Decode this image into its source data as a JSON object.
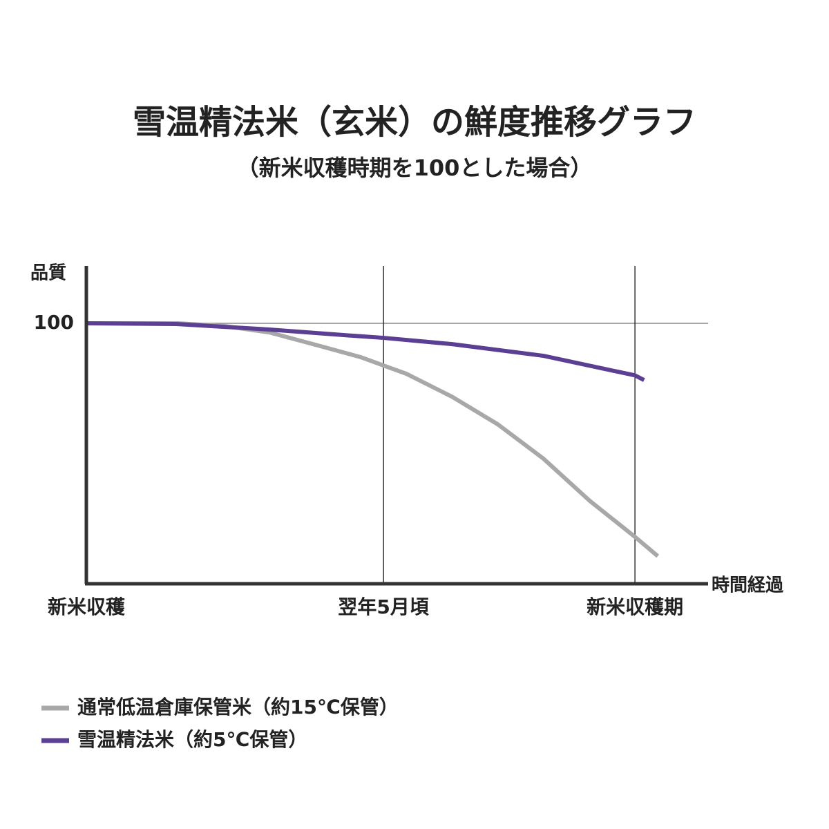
{
  "chart_data": {
    "type": "line",
    "title": "雪温精法米（玄米）の鮮度推移グラフ",
    "subtitle": "（新米収穫時期を100とした場合）",
    "y_label": "品質",
    "x_label": "時間経過",
    "xlim": [
      0,
      13.6
    ],
    "xticks": [
      {
        "value": 0,
        "label": "新米収穫"
      },
      {
        "value": 6.5,
        "label": "翌年5月頃"
      },
      {
        "value": 12,
        "label": "新米収穫期"
      }
    ],
    "ylim": [
      0,
      122
    ],
    "yticks": [
      100
    ],
    "grid": true,
    "legend": "bottom-left",
    "series": [
      {
        "name": "通常低温倉庫保管米（約15℃保管）",
        "color": "#a8a8a8",
        "x": [
          0,
          1,
          2,
          3,
          4,
          5,
          6,
          6.5,
          7,
          8,
          9,
          10,
          11,
          12,
          12.5
        ],
        "values": [
          100,
          100,
          100,
          99,
          96.5,
          91.8,
          87,
          83.8,
          80.6,
          71.8,
          61.2,
          48,
          32,
          18,
          10.6
        ]
      },
      {
        "name": "雪温精法米（約5℃保管）",
        "color": "#5b3f93",
        "x": [
          0,
          2,
          4,
          6,
          6.5,
          8,
          10,
          12,
          12.2
        ],
        "values": [
          100,
          99.7,
          97.6,
          95,
          94.4,
          92,
          87.5,
          80,
          78.2
        ]
      }
    ]
  }
}
